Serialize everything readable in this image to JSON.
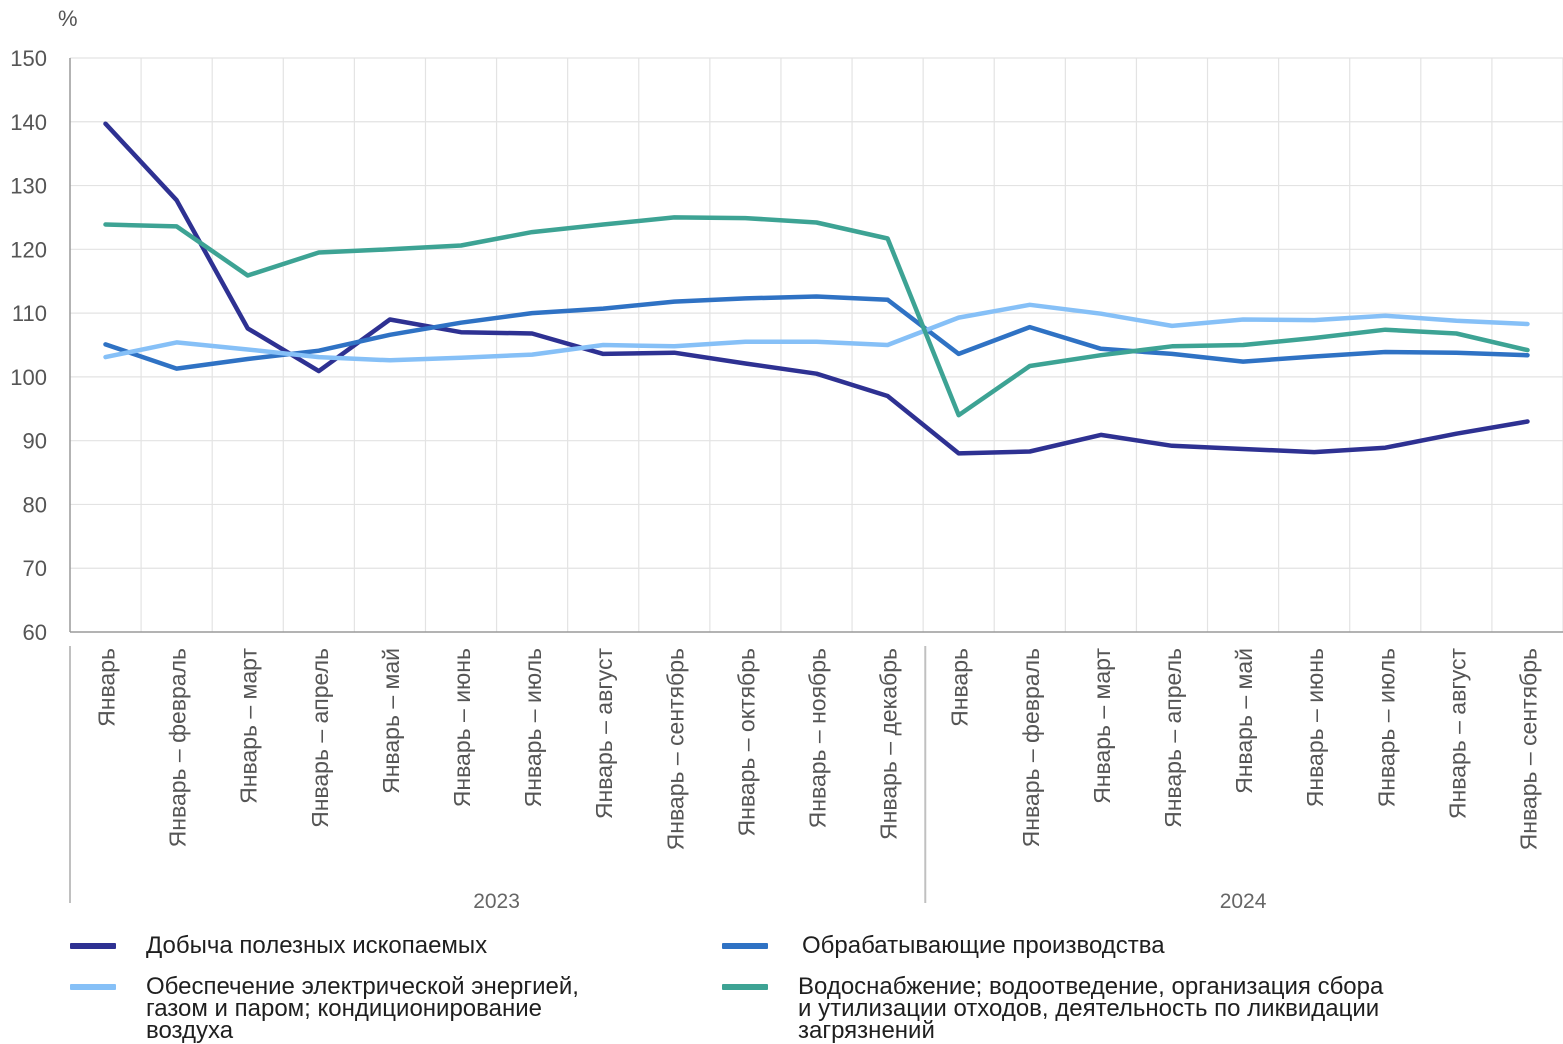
{
  "chart_data": {
    "type": "line",
    "ylabel": "%",
    "ylim": [
      60,
      150
    ],
    "yticks": [
      60,
      70,
      80,
      90,
      100,
      110,
      120,
      130,
      140,
      150
    ],
    "grid": true,
    "legend_position": "bottom",
    "categories": [
      "Январь",
      "Январь – февраль",
      "Январь – март",
      "Январь – апрель",
      "Январь – май",
      "Январь – июнь",
      "Январь – июль",
      "Январь – август",
      "Январь – сентябрь",
      "Январь – октябрь",
      "Январь – ноябрь",
      "Январь – декабрь",
      "Январь",
      "Январь – февраль",
      "Январь – март",
      "Январь – апрель",
      "Январь – май",
      "Январь – июнь",
      "Январь – июль",
      "Январь – август",
      "Январь – сентябрь"
    ],
    "groups": [
      {
        "label": "2023",
        "start": 0,
        "end": 11
      },
      {
        "label": "2024",
        "start": 12,
        "end": 20
      }
    ],
    "series": [
      {
        "name": "Добыча полезных  ископаемых",
        "color": "#2e3192",
        "values": [
          139.7,
          127.7,
          107.6,
          100.9,
          109.0,
          107.0,
          106.8,
          103.6,
          103.8,
          102.1,
          100.5,
          97.0,
          88.0,
          88.3,
          90.9,
          89.2,
          88.7,
          88.2,
          88.9,
          91.1,
          93.0
        ]
      },
      {
        "name": "Обрабатывающие  производства",
        "color": "#2f72c4",
        "values": [
          105.1,
          101.3,
          102.8,
          104.1,
          106.6,
          108.5,
          110.0,
          110.7,
          111.8,
          112.3,
          112.6,
          112.1,
          103.6,
          107.8,
          104.4,
          103.6,
          102.4,
          103.2,
          103.9,
          103.8,
          103.4
        ]
      },
      {
        "name": "Обеспечение электрической энергией,\nгазом и паром;  кондиционирование\nвоздуха",
        "color": "#86c0f7",
        "values": [
          103.1,
          105.4,
          104.3,
          103.1,
          102.6,
          103.0,
          103.5,
          105.0,
          104.8,
          105.5,
          105.5,
          105.0,
          109.3,
          111.3,
          109.9,
          108.0,
          109.0,
          108.9,
          109.6,
          108.8,
          108.3
        ]
      },
      {
        "name": "Водоснабжение; водоотведение, организация сбора\nи утилизации отходов, деятельность по ликвидации\nзагрязнений",
        "color": "#3da394",
        "values": [
          123.9,
          123.6,
          115.9,
          119.5,
          120.0,
          120.6,
          122.7,
          123.9,
          125.0,
          124.9,
          124.2,
          121.7,
          94.0,
          101.7,
          103.4,
          104.8,
          105.0,
          106.1,
          107.4,
          106.8,
          104.2
        ]
      }
    ]
  }
}
